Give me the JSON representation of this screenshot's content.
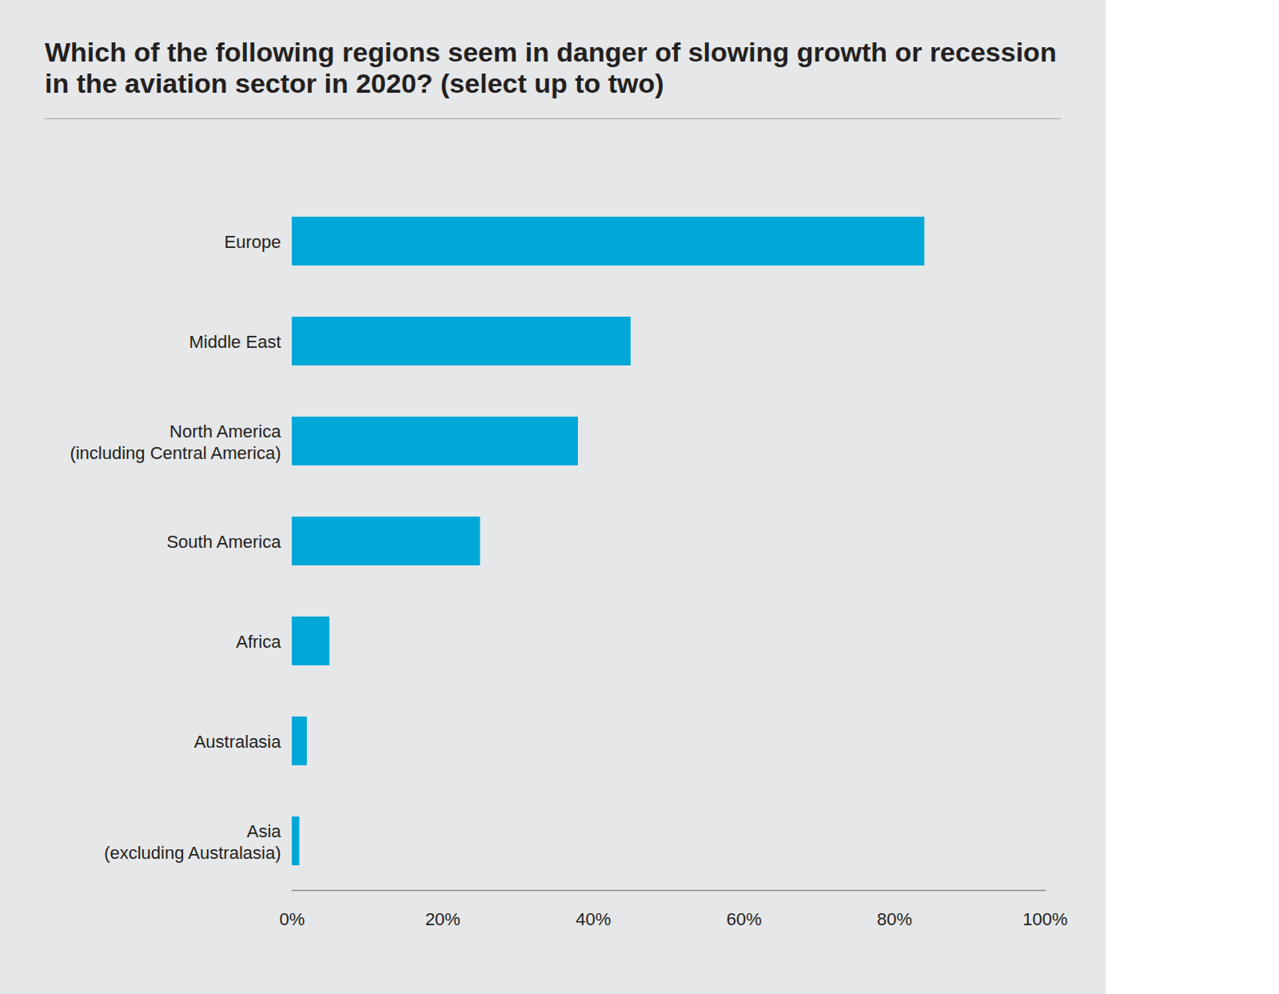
{
  "chart_data": {
    "type": "bar",
    "orientation": "horizontal",
    "title": "Which of the following regions seem in danger of slowing growth or recession in the aviation sector in 2020? (select up to two)",
    "categories": [
      "Europe",
      "Middle East",
      "North America\n(including Central America)",
      "South America",
      "Africa",
      "Australasia",
      "Asia\n(excluding Australasia)"
    ],
    "values": [
      84,
      45,
      38,
      25,
      5,
      2,
      1
    ],
    "color": "#00a8d8",
    "xlim": [
      0,
      100
    ],
    "xticks": [
      {
        "value": 0,
        "label": "0%"
      },
      {
        "value": 20,
        "label": "20%"
      },
      {
        "value": 40,
        "label": "40%"
      },
      {
        "value": 60,
        "label": "60%"
      },
      {
        "value": 80,
        "label": "80%"
      },
      {
        "value": 100,
        "label": "100%"
      }
    ],
    "grid": false
  }
}
